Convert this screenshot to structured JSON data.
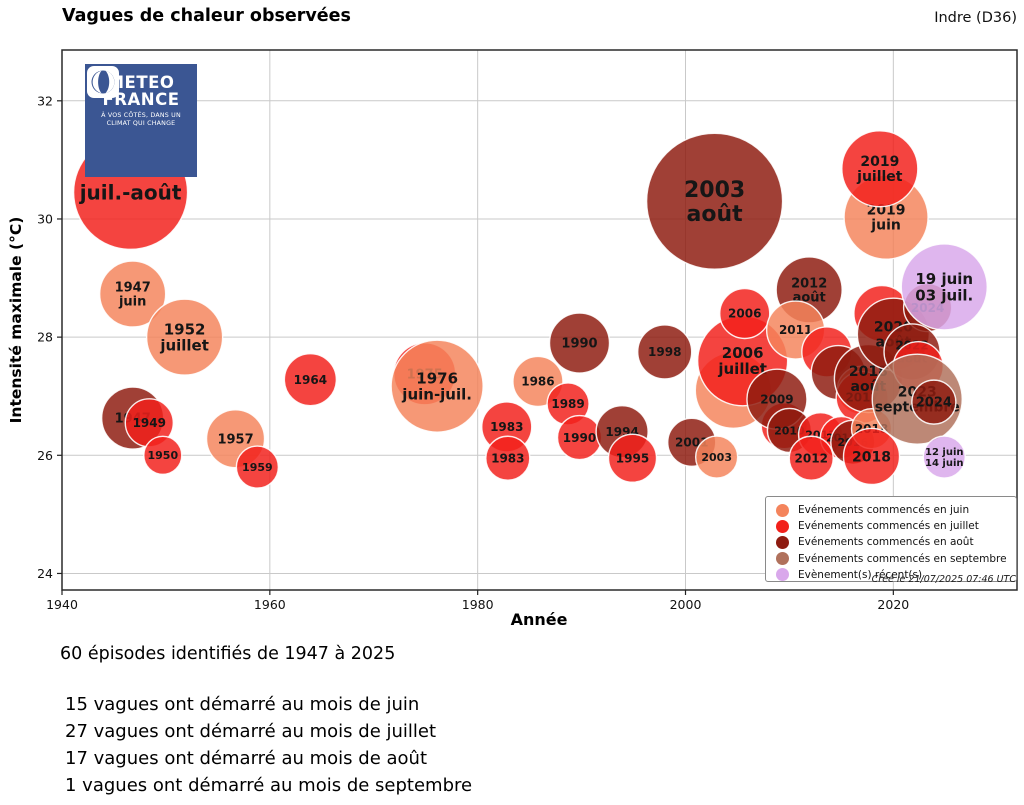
{
  "header": {
    "title": "Vagues de chaleur observées",
    "region": "Indre (D36)"
  },
  "logo": {
    "brand_line1": "METEO",
    "brand_line2": "FRANCE",
    "tagline_line1": "À VOS CÔTÉS, DANS UN",
    "tagline_line2": "CLIMAT QUI CHANGE"
  },
  "chart_data": {
    "type": "bubble",
    "title": "Vagues de chaleur observées",
    "subtitle": "Indre (D36)",
    "xlabel": "Année",
    "ylabel": "Intensité maximale (°C)",
    "xticks": [
      1940,
      1960,
      1980,
      2000,
      2020
    ],
    "yticks": [
      24,
      26,
      28,
      30,
      32
    ],
    "xlim": [
      1940,
      2031.9
    ],
    "ylim": [
      23.72,
      32.86
    ],
    "grid": true,
    "legend_position": "lower right",
    "created_note": "Créé le 21/07/2025 07:46 UTC",
    "categories": {
      "jun": {
        "label": "Evénements commencés en juin",
        "color": "#F4845C"
      },
      "jul": {
        "label": "Evénements commencés en juillet",
        "color": "#F2201B"
      },
      "aug": {
        "label": "Evénements commencés en août",
        "color": "#8E1B10"
      },
      "sep": {
        "label": "Evénements commencés en septembre",
        "color": "#B0715C"
      },
      "recent": {
        "label": "Evènement(s) récent(s)",
        "color": "#D9A8EB"
      }
    },
    "legend_order": [
      "jun",
      "jul",
      "aug",
      "sep",
      "recent"
    ],
    "points": [
      {
        "year": 1946.6,
        "temp": 30.45,
        "r": 57,
        "cat": "jul",
        "label": "juil.-août",
        "fs": 20
      },
      {
        "year": 1946.8,
        "temp": 28.73,
        "r": 33,
        "cat": "jun",
        "label": "1947\njuin",
        "fs": 13
      },
      {
        "year": 1951.8,
        "temp": 28.0,
        "r": 38,
        "cat": "jun",
        "label": "1952\njuillet",
        "fs": 15
      },
      {
        "year": 1946.8,
        "temp": 26.63,
        "r": 31,
        "cat": "aug",
        "label": "1947",
        "fs": 13
      },
      {
        "year": 1948.4,
        "temp": 26.55,
        "r": 24,
        "cat": "jul",
        "label": "1949",
        "fs": 12
      },
      {
        "year": 1949.7,
        "temp": 26.0,
        "r": 19,
        "cat": "jul",
        "label": "1950",
        "fs": 11
      },
      {
        "year": 1956.7,
        "temp": 26.28,
        "r": 29,
        "cat": "jun",
        "label": "1957",
        "fs": 13
      },
      {
        "year": 1958.8,
        "temp": 25.8,
        "r": 21,
        "cat": "jul",
        "label": "1959",
        "fs": 11
      },
      {
        "year": 1963.9,
        "temp": 27.28,
        "r": 26,
        "cat": "jul",
        "label": "1964",
        "fs": 12
      },
      {
        "year": 1974.9,
        "temp": 27.38,
        "r": 31,
        "cat": "jul",
        "label": "1975",
        "fs": 13
      },
      {
        "year": 1976.1,
        "temp": 27.17,
        "r": 46,
        "cat": "jun",
        "label": "1976\njuin-juil.",
        "fs": 15
      },
      {
        "year": 1985.8,
        "temp": 27.25,
        "r": 25,
        "cat": "jun",
        "label": "1986",
        "fs": 12
      },
      {
        "year": 1989.8,
        "temp": 27.9,
        "r": 30,
        "cat": "aug",
        "label": "1990",
        "fs": 13
      },
      {
        "year": 1988.7,
        "temp": 26.87,
        "r": 21,
        "cat": "jul",
        "label": "1989",
        "fs": 12
      },
      {
        "year": 1982.8,
        "temp": 26.48,
        "r": 25,
        "cat": "jul",
        "label": "1983",
        "fs": 12
      },
      {
        "year": 1982.9,
        "temp": 25.95,
        "r": 22,
        "cat": "jul",
        "label": "1983",
        "fs": 12
      },
      {
        "year": 1989.8,
        "temp": 26.3,
        "r": 22,
        "cat": "jul",
        "label": "1990",
        "fs": 12
      },
      {
        "year": 1993.9,
        "temp": 26.4,
        "r": 26,
        "cat": "aug",
        "label": "1994",
        "fs": 12
      },
      {
        "year": 1994.9,
        "temp": 25.95,
        "r": 24,
        "cat": "jul",
        "label": "1995",
        "fs": 12
      },
      {
        "year": 1998.0,
        "temp": 27.75,
        "r": 27,
        "cat": "aug",
        "label": "1998",
        "fs": 12
      },
      {
        "year": 2002.8,
        "temp": 30.3,
        "r": 68,
        "cat": "aug",
        "label": "2003\naoût",
        "fs": 22
      },
      {
        "year": 2000.6,
        "temp": 26.22,
        "r": 24,
        "cat": "aug",
        "label": "2001",
        "fs": 12
      },
      {
        "year": 2003.0,
        "temp": 25.97,
        "r": 21,
        "cat": "jun",
        "label": "2003",
        "fs": 11
      },
      {
        "year": 2004.6,
        "temp": 27.1,
        "r": 38,
        "cat": "jun",
        "label": "",
        "fs": 11
      },
      {
        "year": 2005.5,
        "temp": 27.6,
        "r": 45,
        "cat": "jul",
        "label": "2006\njuillet",
        "fs": 15
      },
      {
        "year": 2005.7,
        "temp": 28.4,
        "r": 25,
        "cat": "jul",
        "label": "2006",
        "fs": 12
      },
      {
        "year": 2011.9,
        "temp": 28.8,
        "r": 33,
        "cat": "aug",
        "label": "2012\naoût",
        "fs": 13
      },
      {
        "year": 2010.6,
        "temp": 28.12,
        "r": 29,
        "cat": "jun",
        "label": "2011",
        "fs": 12
      },
      {
        "year": 2009.5,
        "temp": 26.5,
        "r": 23,
        "cat": "jul",
        "label": "",
        "fs": 11
      },
      {
        "year": 2008.8,
        "temp": 26.95,
        "r": 30,
        "cat": "aug",
        "label": "2009",
        "fs": 12
      },
      {
        "year": 2013.6,
        "temp": 27.75,
        "r": 25,
        "cat": "jul",
        "label": "",
        "fs": 11
      },
      {
        "year": 2014.7,
        "temp": 27.4,
        "r": 27,
        "cat": "aug",
        "label": "",
        "fs": 11
      },
      {
        "year": 2016.9,
        "temp": 27.1,
        "r": 24,
        "cat": "jun",
        "label": "",
        "fs": 11
      },
      {
        "year": 2017.0,
        "temp": 26.98,
        "r": 26,
        "cat": "jul",
        "label": "2017",
        "fs": 12
      },
      {
        "year": 2017.6,
        "temp": 27.3,
        "r": 34,
        "cat": "aug",
        "label": "2018\naoût",
        "fs": 14
      },
      {
        "year": 2018.9,
        "temp": 28.4,
        "r": 28,
        "cat": "jul",
        "label": "",
        "fs": 11
      },
      {
        "year": 2020.0,
        "temp": 28.05,
        "r": 36,
        "cat": "aug",
        "label": "2020\naoût",
        "fs": 14
      },
      {
        "year": 2023.3,
        "temp": 28.5,
        "r": 24,
        "cat": "aug",
        "label": "2024",
        "fs": 12
      },
      {
        "year": 2021.8,
        "temp": 27.75,
        "r": 28,
        "cat": "aug",
        "label": "2022\naoût",
        "fs": 12
      },
      {
        "year": 2022.4,
        "temp": 27.5,
        "r": 25,
        "cat": "jul",
        "label": "",
        "fs": 11
      },
      {
        "year": 2010.0,
        "temp": 26.42,
        "r": 22,
        "cat": "aug",
        "label": "2010",
        "fs": 11
      },
      {
        "year": 2013.0,
        "temp": 26.35,
        "r": 22,
        "cat": "jul",
        "label": "2013",
        "fs": 11
      },
      {
        "year": 2015.0,
        "temp": 26.3,
        "r": 21,
        "cat": "jul",
        "label": "2015",
        "fs": 11
      },
      {
        "year": 2016.1,
        "temp": 26.22,
        "r": 22,
        "cat": "aug",
        "label": "2016",
        "fs": 11
      },
      {
        "year": 2012.1,
        "temp": 25.95,
        "r": 22,
        "cat": "jul",
        "label": "2012",
        "fs": 12
      },
      {
        "year": 2017.9,
        "temp": 26.45,
        "r": 20,
        "cat": "jun",
        "label": "2018",
        "fs": 12
      },
      {
        "year": 2017.9,
        "temp": 25.98,
        "r": 28,
        "cat": "jul",
        "label": "2018",
        "fs": 14
      },
      {
        "year": 2019.3,
        "temp": 30.03,
        "r": 42,
        "cat": "jun",
        "label": "2019\njuin",
        "fs": 14
      },
      {
        "year": 2018.7,
        "temp": 30.85,
        "r": 38,
        "cat": "jul",
        "label": "2019\njuillet",
        "fs": 14
      },
      {
        "year": 2022.3,
        "temp": 26.95,
        "r": 45,
        "cat": "sep",
        "label": "2023\nseptembre",
        "fs": 14
      },
      {
        "year": 2023.9,
        "temp": 26.9,
        "r": 22,
        "cat": "aug",
        "label": "2024",
        "fs": 13
      },
      {
        "year": 2024.9,
        "temp": 28.85,
        "r": 43,
        "cat": "recent",
        "label": "19 juin\n03 juil.",
        "fs": 15
      },
      {
        "year": 2024.9,
        "temp": 25.97,
        "r": 21,
        "cat": "recent",
        "label": "12 juin\n14 juin",
        "fs": 10
      }
    ]
  },
  "summary": {
    "headline": "60 épisodes identifiés de 1947 à 2025",
    "lines": [
      "15 vagues ont démarré au mois de juin",
      "27 vagues ont démarré au mois de juillet",
      "17 vagues ont démarré au mois de août",
      "1 vagues ont démarré au mois de septembre"
    ]
  }
}
